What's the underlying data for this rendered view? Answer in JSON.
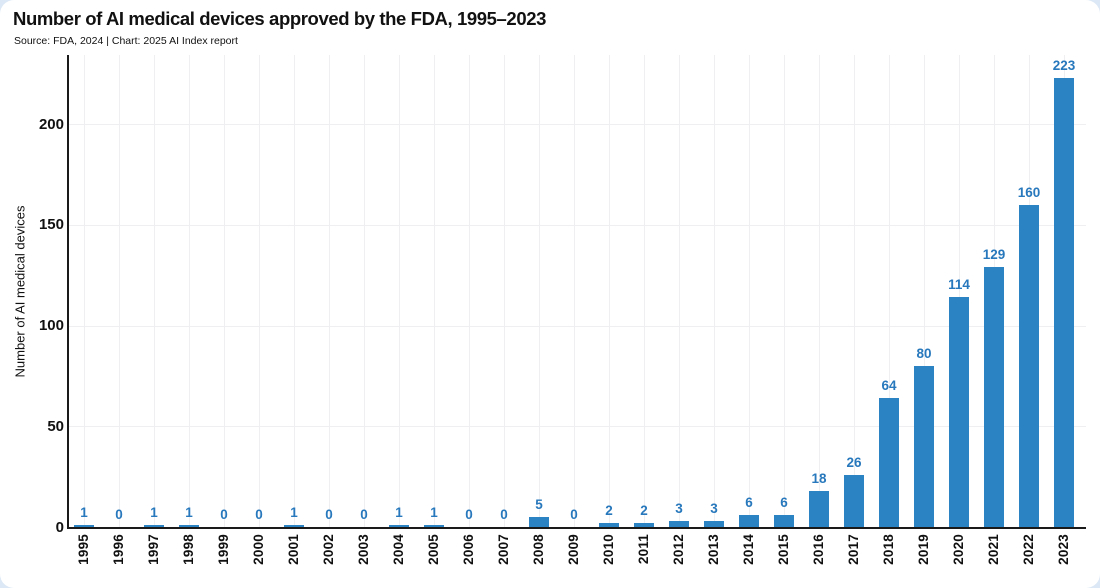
{
  "header": {
    "title": "Number of AI medical devices approved by the FDA, 1995–2023",
    "subtitle": "Source: FDA, 2024 | Chart: 2025 AI Index report"
  },
  "colors": {
    "bar": "#2b83c3",
    "value_label": "#2778bc",
    "axis": "#1a1a1a",
    "grid": "#efeff1",
    "text": "#111111",
    "page_background": "#dce8f5",
    "card_background": "#ffffff"
  },
  "chart_data": {
    "type": "bar",
    "title": "Number of AI medical devices approved by the FDA, 1995–2023",
    "subtitle": "Source: FDA, 2024 | Chart: 2025 AI Index report",
    "categories": [
      "1995",
      "1996",
      "1997",
      "1998",
      "1999",
      "2000",
      "2001",
      "2002",
      "2003",
      "2004",
      "2005",
      "2006",
      "2007",
      "2008",
      "2009",
      "2010",
      "2011",
      "2012",
      "2013",
      "2014",
      "2015",
      "2016",
      "2017",
      "2018",
      "2019",
      "2020",
      "2021",
      "2022",
      "2023"
    ],
    "values": [
      1,
      0,
      1,
      1,
      0,
      0,
      1,
      0,
      0,
      1,
      1,
      0,
      0,
      5,
      0,
      2,
      2,
      3,
      3,
      6,
      6,
      18,
      26,
      64,
      80,
      114,
      129,
      160,
      223
    ],
    "xlabel": "",
    "ylabel": "Number of AI medical devices",
    "yticks": [
      0,
      50,
      100,
      150,
      200
    ],
    "ylim": [
      0,
      235
    ],
    "grid": true,
    "bar_value_labels_shown": true,
    "legend": "none"
  }
}
